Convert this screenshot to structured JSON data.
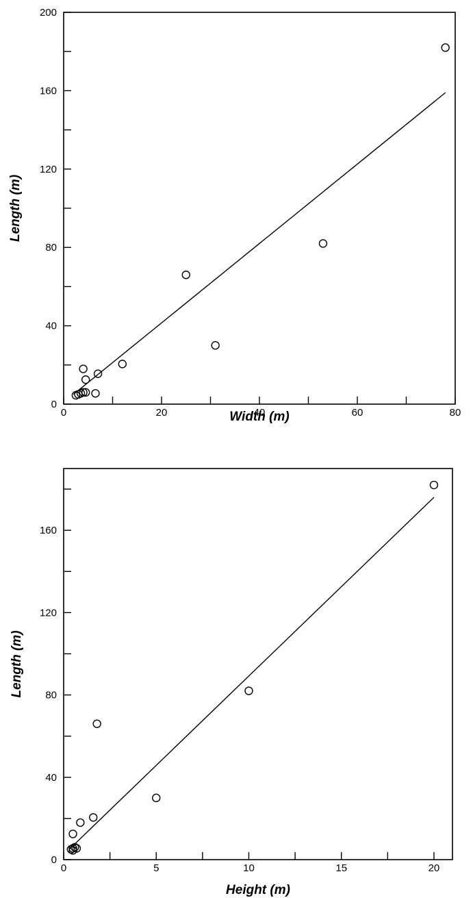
{
  "chart_data": [
    {
      "type": "scatter",
      "xlabel": "Width (m)",
      "ylabel": "Length (m)",
      "xlim": [
        0,
        80
      ],
      "ylim": [
        0,
        200
      ],
      "x_ticks": [
        0,
        20,
        40,
        60,
        80
      ],
      "y_ticks": [
        0,
        40,
        80,
        120,
        160,
        200
      ],
      "x_minor_ticks": [
        10,
        30,
        50,
        70
      ],
      "y_minor_ticks": [
        20,
        60,
        100,
        140,
        180
      ],
      "grid": false,
      "legend": "none",
      "series": [
        {
          "points": [
            [
              2.5,
              4.5
            ],
            [
              3.0,
              5.0
            ],
            [
              3.5,
              5.5
            ],
            [
              4.0,
              6.0
            ],
            [
              4.5,
              6.0
            ],
            [
              4.0,
              18.0
            ],
            [
              4.5,
              12.5
            ],
            [
              6.5,
              5.5
            ],
            [
              7.0,
              15.5
            ],
            [
              12.0,
              20.5
            ],
            [
              25.0,
              66.0
            ],
            [
              31.0,
              30.0
            ],
            [
              53.0,
              82.0
            ],
            [
              78.0,
              182.0
            ]
          ]
        }
      ],
      "fit_line": {
        "x": [
          2.0,
          78.0
        ],
        "y": [
          5.0,
          159.0
        ]
      }
    },
    {
      "type": "scatter",
      "xlabel": "Height (m)",
      "ylabel": "Length (m)",
      "xlim": [
        0,
        21
      ],
      "ylim": [
        0,
        190
      ],
      "x_ticks": [
        0,
        5,
        10,
        15,
        20
      ],
      "y_ticks": [
        0,
        40,
        80,
        120,
        160
      ],
      "x_minor_ticks": [
        2.5,
        7.5,
        12.5,
        17.5
      ],
      "y_minor_ticks": [
        20,
        60,
        100,
        140,
        180
      ],
      "grid": false,
      "legend": "none",
      "series": [
        {
          "points": [
            [
              0.4,
              5.0
            ],
            [
              0.5,
              5.5
            ],
            [
              0.5,
              4.5
            ],
            [
              0.6,
              6.0
            ],
            [
              0.7,
              5.5
            ],
            [
              0.5,
              12.5
            ],
            [
              0.9,
              18.0
            ],
            [
              1.6,
              20.5
            ],
            [
              1.8,
              66.0
            ],
            [
              5.0,
              30.0
            ],
            [
              10.0,
              82.0
            ],
            [
              20.0,
              182.0
            ]
          ]
        }
      ],
      "fit_line": {
        "x": [
          0.3,
          20.0
        ],
        "y": [
          5.0,
          176.0
        ]
      }
    }
  ]
}
